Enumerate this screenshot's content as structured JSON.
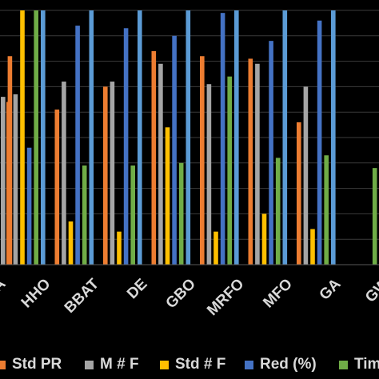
{
  "chart_data": {
    "type": "bar",
    "categories": [
      "HHO",
      "BBAT",
      "DE",
      "GBO",
      "MRFO",
      "MFO",
      "GA",
      "GW"
    ],
    "first_category_tail": "A",
    "series": [
      {
        "name": "Std PR",
        "color": "#ed7d31",
        "values": [
          0.64,
          0.61,
          0.7,
          0.84,
          0.82,
          0.81,
          0.56,
          null
        ]
      },
      {
        "name": "M # F",
        "color": "#a5a5a5",
        "values": [
          0.67,
          0.72,
          0.72,
          0.79,
          0.71,
          0.79,
          0.7,
          null
        ]
      },
      {
        "name": "Std # F",
        "color": "#ffc000",
        "values": [
          1.0,
          0.17,
          0.13,
          0.54,
          0.13,
          0.2,
          0.14,
          null
        ]
      },
      {
        "name": "Red (%)",
        "color": "#4472c4",
        "values": [
          0.46,
          0.94,
          0.93,
          0.9,
          0.99,
          0.88,
          0.96,
          null
        ]
      },
      {
        "name": "Tim",
        "color": "#70ad47",
        "values": [
          1.0,
          0.39,
          0.39,
          0.4,
          0.74,
          0.42,
          0.43,
          0.38
        ]
      },
      {
        "name": "",
        "color": "#5b9bd5",
        "values": [
          1.0,
          1.0,
          1.0,
          1.0,
          1.0,
          1.0,
          1.0,
          1.0
        ]
      }
    ],
    "leading_bars": [
      {
        "series": "M # F",
        "value": 0.66
      },
      {
        "series": "Std PR",
        "value": 0.82
      }
    ],
    "ylim": [
      0,
      1
    ],
    "grid": true,
    "legend": {
      "position": "bottom",
      "entries": [
        {
          "label": "Std PR",
          "color": "#ed7d31"
        },
        {
          "label": "M # F",
          "color": "#a5a5a5"
        },
        {
          "label": "Std # F",
          "color": "#ffc000"
        },
        {
          "label": "Red (%)",
          "color": "#4472c4"
        },
        {
          "label": "Tim",
          "color": "#70ad47"
        }
      ]
    }
  }
}
